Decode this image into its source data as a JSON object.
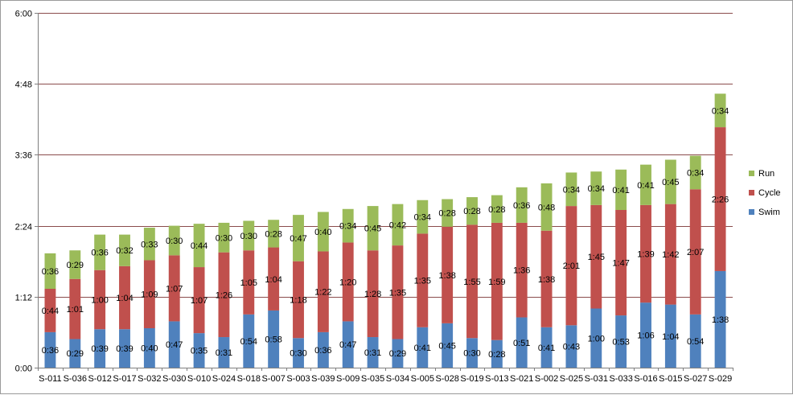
{
  "chart_data": {
    "type": "bar",
    "stacked": true,
    "title": "",
    "xlabel": "",
    "ylabel": "",
    "value_unit": "minutes",
    "ylim": [
      0,
      360
    ],
    "yticks": [
      0,
      72,
      144,
      216,
      288,
      360
    ],
    "ytick_labels": [
      "0:00",
      "1:12",
      "2:24",
      "3:36",
      "4:48",
      "6:00"
    ],
    "grid": true,
    "legend_position": "right",
    "categories": [
      "S-011",
      "S-036",
      "S-012",
      "S-017",
      "S-032",
      "S-030",
      "S-010",
      "S-024",
      "S-018",
      "S-007",
      "S-003",
      "S-039",
      "S-009",
      "S-035",
      "S-034",
      "S-005",
      "S-028",
      "S-019",
      "S-013",
      "S-021",
      "S-002",
      "S-025",
      "S-031",
      "S-033",
      "S-016",
      "S-015",
      "S-027",
      "S-029"
    ],
    "series": [
      {
        "name": "Swim",
        "color": "#4f81bd",
        "values": [
          36,
          29,
          39,
          39,
          40,
          47,
          35,
          31,
          54,
          58,
          30,
          36,
          47,
          31,
          29,
          41,
          45,
          30,
          28,
          51,
          41,
          43,
          60,
          53,
          66,
          64,
          54,
          98
        ],
        "labels": [
          "0:36",
          "0:29",
          "0:39",
          "0:39",
          "0:40",
          "0:47",
          "0:35",
          "0:31",
          "0:54",
          "0:58",
          "0:30",
          "0:36",
          "0:47",
          "0:31",
          "0:29",
          "0:41",
          "0:45",
          "0:30",
          "0:28",
          "0:51",
          "0:41",
          "0:43",
          "1:00",
          "0:53",
          "1:06",
          "1:04",
          "0:54",
          "1:38"
        ]
      },
      {
        "name": "Cycle",
        "color": "#c0504d",
        "values": [
          44,
          61,
          60,
          64,
          69,
          67,
          67,
          86,
          65,
          64,
          78,
          82,
          80,
          88,
          95,
          95,
          98,
          115,
          119,
          96,
          98,
          121,
          105,
          107,
          99,
          102,
          127,
          146
        ],
        "labels": [
          "0:44",
          "1:01",
          "1:00",
          "1:04",
          "1:09",
          "1:07",
          "1:07",
          "1:26",
          "1:05",
          "1:04",
          "1:18",
          "1:22",
          "1:20",
          "1:28",
          "1:35",
          "1:35",
          "1:38",
          "1:55",
          "1:59",
          "1:36",
          "1:38",
          "2:01",
          "1:45",
          "1:47",
          "1:39",
          "1:42",
          "2:07",
          "2:26"
        ]
      },
      {
        "name": "Run",
        "color": "#9bbb59",
        "values": [
          36,
          29,
          36,
          32,
          33,
          30,
          44,
          30,
          30,
          28,
          47,
          40,
          34,
          45,
          42,
          34,
          28,
          28,
          28,
          36,
          48,
          34,
          34,
          41,
          41,
          45,
          34,
          34
        ],
        "labels": [
          "0:36",
          "0:29",
          "0:36",
          "0:32",
          "0:33",
          "0:30",
          "0:44",
          "0:30",
          "0:30",
          "0:28",
          "0:47",
          "0:40",
          "0:34",
          "0:45",
          "0:42",
          "0:34",
          "0:28",
          "0:28",
          "0:28",
          "0:36",
          "0:48",
          "0:34",
          "0:34",
          "0:41",
          "0:41",
          "0:45",
          "0:34",
          "0:34"
        ]
      }
    ],
    "legend_order": [
      "Run",
      "Cycle",
      "Swim"
    ]
  }
}
